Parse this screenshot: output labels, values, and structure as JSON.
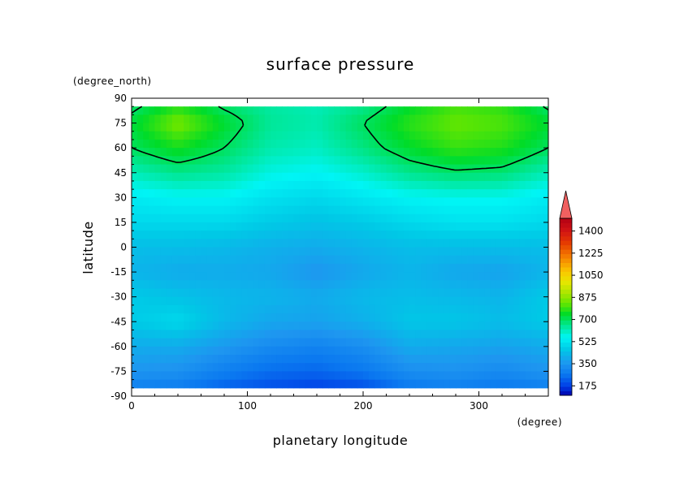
{
  "chart_data": {
    "type": "heatmap",
    "title": "surface pressure",
    "xlabel": "planetary longitude",
    "ylabel": "latitude",
    "x_unit": "(degree)",
    "y_unit": "(degree_north)",
    "xlim": [
      0,
      360
    ],
    "ylim": [
      -90,
      90
    ],
    "x_ticks": [
      0,
      100,
      200,
      300
    ],
    "y_ticks": [
      90,
      75,
      60,
      45,
      30,
      15,
      0,
      -15,
      -30,
      -45,
      -60,
      -75,
      -90
    ],
    "colorbar": {
      "ticks": [
        175,
        350,
        525,
        700,
        875,
        1050,
        1225,
        1400
      ],
      "range": [
        100,
        1500
      ],
      "extend": "max"
    },
    "grid_x": [
      0,
      40,
      80,
      120,
      160,
      200,
      240,
      280,
      320,
      360
    ],
    "grid_y": [
      85,
      75,
      60,
      45,
      30,
      15,
      0,
      -15,
      -30,
      -45,
      -60,
      -75,
      -85
    ],
    "values": [
      [
        680,
        770,
        690,
        640,
        620,
        660,
        740,
        800,
        780,
        690
      ],
      [
        730,
        850,
        740,
        650,
        630,
        700,
        780,
        830,
        810,
        740
      ],
      [
        700,
        760,
        700,
        630,
        610,
        670,
        740,
        790,
        770,
        700
      ],
      [
        620,
        660,
        640,
        580,
        560,
        600,
        660,
        690,
        680,
        620
      ],
      [
        540,
        560,
        560,
        520,
        500,
        530,
        560,
        570,
        570,
        540
      ],
      [
        500,
        500,
        500,
        470,
        450,
        470,
        500,
        520,
        520,
        500
      ],
      [
        440,
        440,
        430,
        410,
        400,
        420,
        440,
        440,
        440,
        440
      ],
      [
        420,
        400,
        400,
        390,
        350,
        390,
        420,
        390,
        380,
        420
      ],
      [
        470,
        450,
        430,
        420,
        400,
        430,
        440,
        430,
        420,
        470
      ],
      [
        470,
        500,
        430,
        390,
        380,
        410,
        460,
        460,
        440,
        470
      ],
      [
        400,
        400,
        360,
        320,
        300,
        330,
        400,
        390,
        380,
        400
      ],
      [
        350,
        340,
        290,
        250,
        240,
        270,
        330,
        340,
        320,
        350
      ],
      [
        290,
        280,
        230,
        200,
        180,
        200,
        270,
        290,
        270,
        290
      ]
    ],
    "contour_level": 700
  }
}
